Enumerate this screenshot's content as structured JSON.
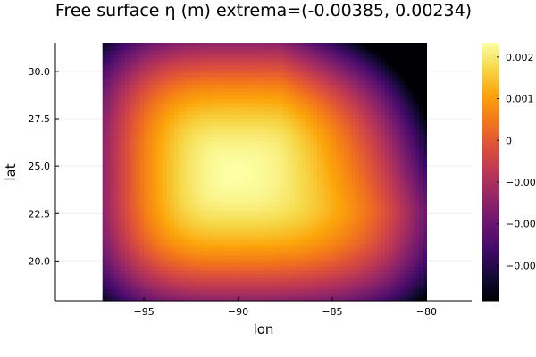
{
  "chart_data": {
    "type": "heatmap",
    "title": "Free surface η (m)  extrema=(-0.00385, 0.00234)",
    "xlabel": "lon",
    "ylabel": "lat",
    "xlim": [
      -99.7,
      -77.6
    ],
    "ylim": [
      17.9,
      31.5
    ],
    "x_ticks": [
      -95,
      -90,
      -85,
      -80
    ],
    "x_tick_labels": [
      "−95",
      "−90",
      "−85",
      "−80"
    ],
    "y_ticks": [
      20.0,
      22.5,
      25.0,
      27.5,
      30.0
    ],
    "y_tick_labels": [
      "20.0",
      "22.5",
      "25.0",
      "27.5",
      "30.0"
    ],
    "grid": true,
    "colormap": "inferno",
    "field_extent": {
      "lon": [
        -97.2,
        -80.0
      ],
      "lat": [
        17.9,
        31.5
      ]
    },
    "field_peak": {
      "lon": -90.3,
      "lat": 24.6,
      "value": 0.00234
    },
    "clim": [
      -0.00385,
      0.00234
    ],
    "colorbar_ticks": [
      -0.003,
      -0.002,
      -0.001,
      0,
      0.001,
      0.002
    ],
    "colorbar_tick_labels": [
      "−0.00",
      "−0.00",
      "−0.00",
      "0",
      "0.001",
      "0.002"
    ]
  }
}
